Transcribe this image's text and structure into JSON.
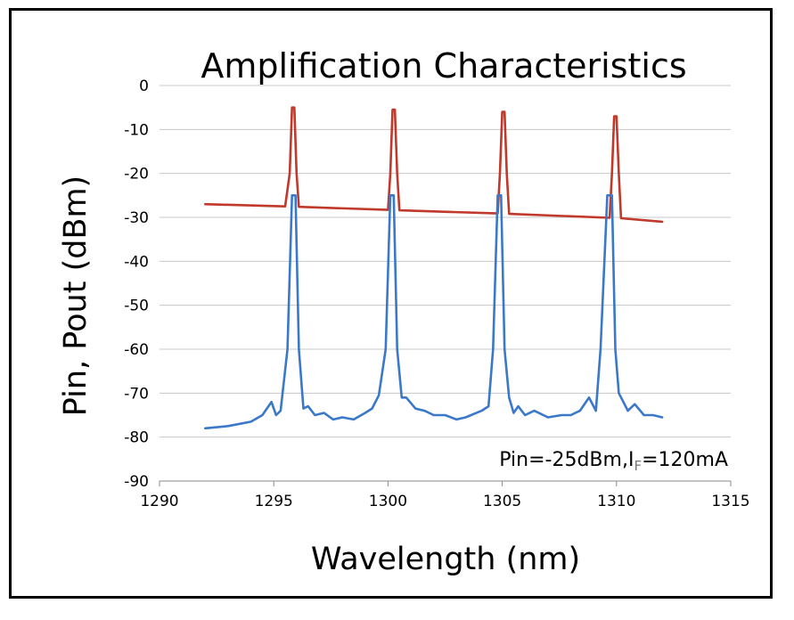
{
  "chart_data": {
    "type": "line",
    "title": "Amplification Characteristics",
    "xlabel": "Wavelength (nm)",
    "ylabel": "Pin, Pout (dBm)",
    "xlim": [
      1290,
      1315
    ],
    "ylim": [
      -90,
      0
    ],
    "xticks": [
      "1290",
      "1295",
      "1300",
      "1305",
      "1310",
      "1315"
    ],
    "yticks": [
      "0",
      "-10",
      "-20",
      "-30",
      "-40",
      "-50",
      "-60",
      "-70",
      "-80",
      "-90"
    ],
    "grid": "horizontal",
    "annotation": {
      "prefix": "Pin=-25dBm,I",
      "subscript": "F",
      "suffix": "=120mA"
    },
    "colors": {
      "red": "#c0392b",
      "blue": "#3a78c9"
    },
    "series": [
      {
        "color": "red",
        "x": [
          1292,
          1295.5,
          1295.7,
          1295.8,
          1295.9,
          1296.0,
          1296.1,
          1300.0,
          1300.1,
          1300.2,
          1300.3,
          1300.4,
          1300.5,
          1304.8,
          1304.9,
          1305.0,
          1305.1,
          1305.2,
          1305.3,
          1309.7,
          1309.8,
          1309.9,
          1310.0,
          1310.1,
          1310.2,
          1312
        ],
        "y": [
          -27,
          -27.5,
          -20,
          -5,
          -5,
          -20,
          -27.6,
          -28.3,
          -20,
          -5.5,
          -5.5,
          -20,
          -28.4,
          -29.1,
          -20,
          -6,
          -6,
          -20,
          -29.2,
          -30.1,
          -20,
          -7,
          -7,
          -20,
          -30.2,
          -31
        ]
      },
      {
        "color": "blue",
        "x": [
          1292,
          1293,
          1294,
          1294.5,
          1294.9,
          1295.1,
          1295.3,
          1295.6,
          1295.8,
          1295.95,
          1296.1,
          1296.3,
          1296.5,
          1296.8,
          1297.2,
          1297.6,
          1298,
          1298.5,
          1299,
          1299.3,
          1299.6,
          1299.9,
          1300.1,
          1300.25,
          1300.4,
          1300.6,
          1300.8,
          1301.2,
          1301.6,
          1302,
          1302.5,
          1303,
          1303.4,
          1304.1,
          1304.4,
          1304.6,
          1304.8,
          1304.95,
          1305.1,
          1305.3,
          1305.5,
          1305.7,
          1306,
          1306.4,
          1307,
          1307.6,
          1308,
          1308.4,
          1308.8,
          1309.1,
          1309.3,
          1309.6,
          1309.8,
          1309.95,
          1310.1,
          1310.3,
          1310.5,
          1310.8,
          1311.2,
          1311.6,
          1312
        ],
        "y": [
          -78,
          -77.5,
          -76.5,
          -75,
          -72,
          -75,
          -74,
          -60,
          -25,
          -25,
          -60,
          -73.5,
          -73,
          -75,
          -74.5,
          -76,
          -75.5,
          -76,
          -74.5,
          -73.5,
          -70.5,
          -60,
          -25,
          -25,
          -60,
          -71,
          -71,
          -73.5,
          -74,
          -75,
          -75,
          -76,
          -75.5,
          -74,
          -73,
          -60,
          -25,
          -25,
          -60,
          -71,
          -74.5,
          -73,
          -75,
          -74,
          -75.5,
          -75,
          -75,
          -74,
          -71,
          -74,
          -60,
          -25,
          -25,
          -60,
          -70,
          -72,
          -74,
          -72.5,
          -75,
          -75,
          -75.5
        ]
      }
    ]
  }
}
